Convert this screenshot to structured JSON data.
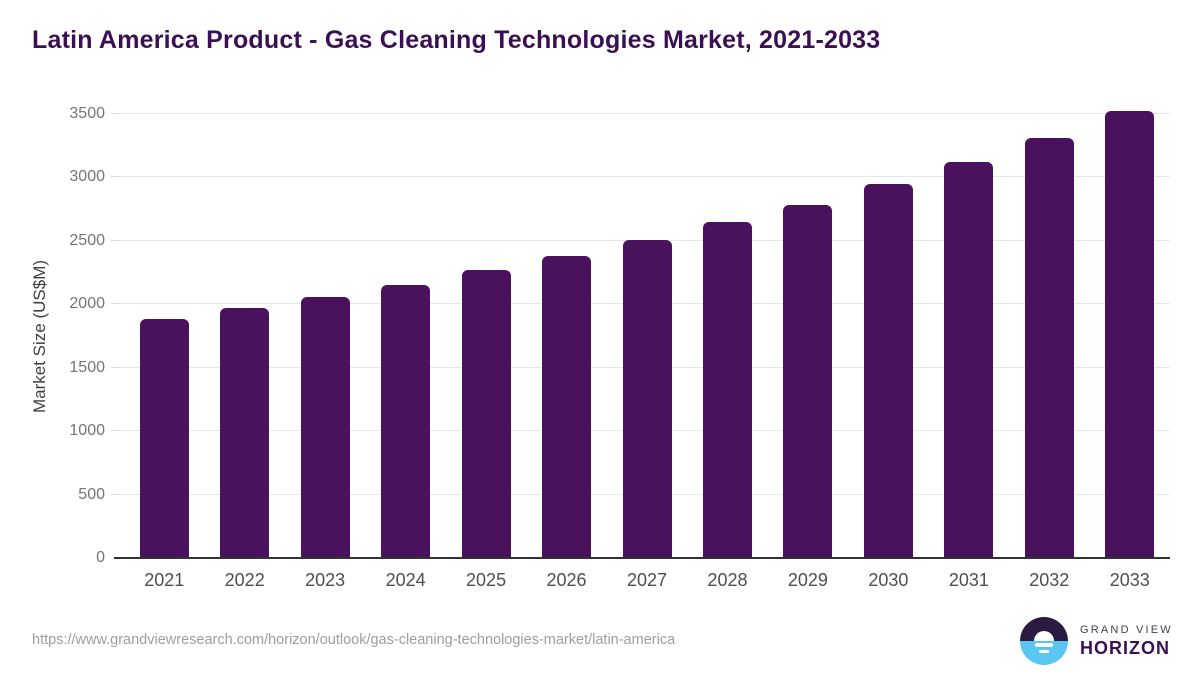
{
  "title": "Latin America Product - Gas Cleaning Technologies Market, 2021-2033",
  "chart_data": {
    "type": "bar",
    "categories": [
      "2021",
      "2022",
      "2023",
      "2024",
      "2025",
      "2026",
      "2027",
      "2028",
      "2029",
      "2030",
      "2031",
      "2032",
      "2033"
    ],
    "values": [
      1885,
      1970,
      2055,
      2150,
      2270,
      2380,
      2505,
      2645,
      2785,
      2950,
      3120,
      3310,
      3525
    ],
    "title": "Latin America Product - Gas Cleaning Technologies Market, 2021-2033",
    "xlabel": "",
    "ylabel": "Market Size (US$M)",
    "ylim": [
      0,
      3500
    ],
    "ytick_step": 500,
    "grid": "horizontal",
    "legend": "none",
    "bar_color": "#4A115C"
  },
  "colors": {
    "title": "#3B1053",
    "bar": "#4A115C",
    "gridline": "#E8E8E8",
    "axis_line": "#333333",
    "y_tick_label": "#757575",
    "x_tick_label": "#4F4F4F",
    "url_text": "#9E9E9E",
    "logo_sky": "#2B1A41",
    "logo_sea": "#5BC6F0"
  },
  "footer": {
    "source_url": "https://www.grandviewresearch.com/horizon/outlook/gas-cleaning-technologies-market/latin-america",
    "logo": {
      "line1": "GRAND VIEW",
      "line2": "HORIZON"
    }
  }
}
